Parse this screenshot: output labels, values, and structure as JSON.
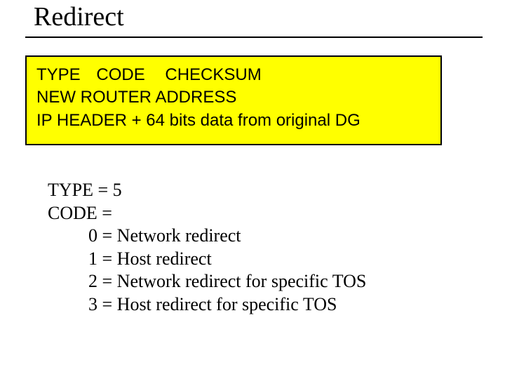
{
  "title": "Redirect",
  "packet": {
    "row1": {
      "type": "TYPE",
      "code": "CODE",
      "checksum": "CHECKSUM"
    },
    "row2": "NEW ROUTER ADDRESS",
    "row3": "IP HEADER + 64 bits data from original DG"
  },
  "definitions": {
    "type_line": "TYPE = 5",
    "code_label": "CODE =",
    "codes": [
      "0 = Network redirect",
      "1 = Host redirect",
      "2 = Network redirect for specific TOS",
      "3 = Host redirect for specific TOS"
    ]
  },
  "colors": {
    "box_bg": "#ffff00",
    "box_border": "#000000",
    "text": "#000000",
    "background": "#ffffff"
  }
}
